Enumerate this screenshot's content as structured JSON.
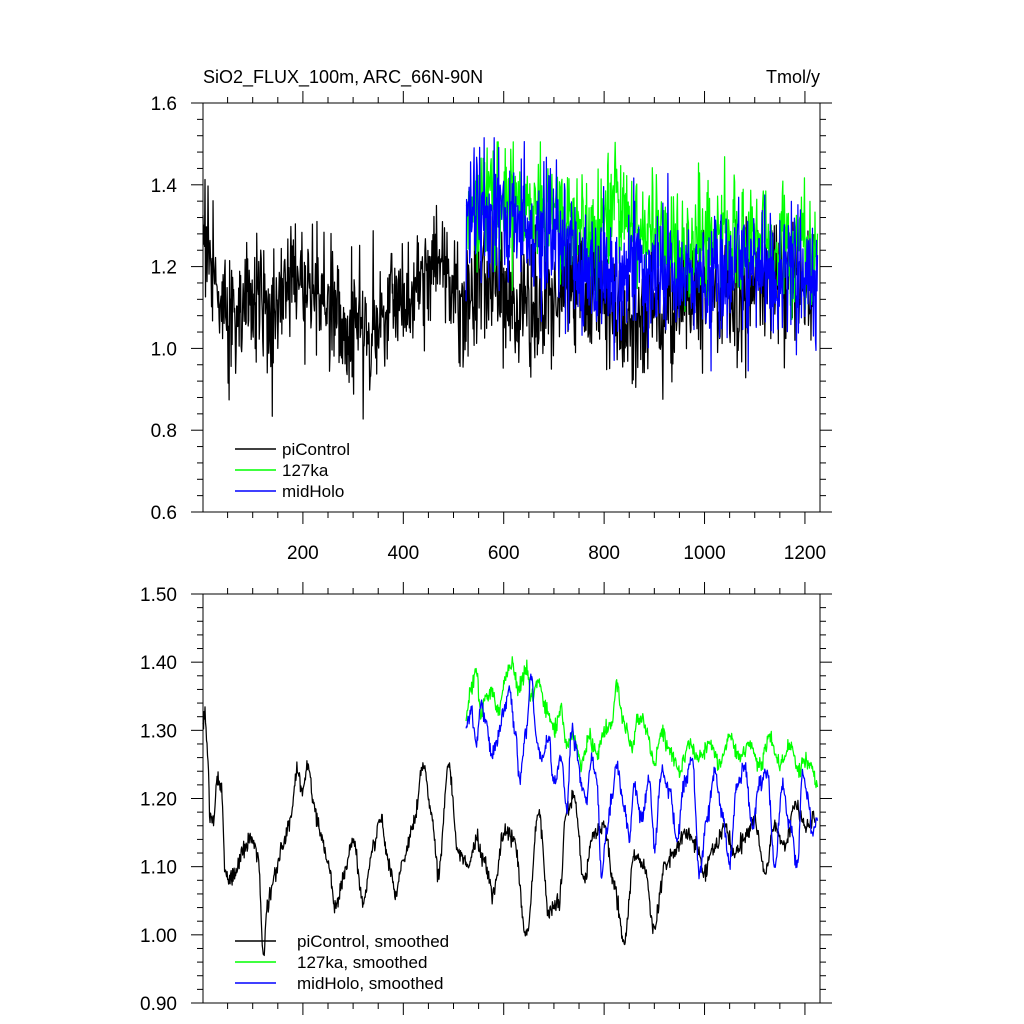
{
  "figure": {
    "title_left": "SiO2_FLUX_100m, ARC_66N-90N",
    "title_right": "Tmol/y"
  },
  "colors": {
    "piControl": "#000000",
    "127ka": "#00ff00",
    "midHolo": "#0000ff"
  },
  "chart_data": [
    {
      "type": "line",
      "title": "SiO2_FLUX_100m, ARC_66N-90N",
      "units": "Tmol/y",
      "xlabel": "",
      "ylabel": "",
      "xlim": [
        1,
        1230
      ],
      "ylim": [
        0.6,
        1.6
      ],
      "xticks": [
        200,
        400,
        600,
        800,
        1000,
        1200
      ],
      "xtick_labels": [
        "200",
        "400",
        "600",
        "800",
        "1000",
        "1200"
      ],
      "yticks": [
        0.6,
        0.8,
        1.0,
        1.2,
        1.4,
        1.6
      ],
      "ytick_labels": [
        "0.6",
        "0.8",
        "1.0",
        "1.2",
        "1.4",
        "1.6"
      ],
      "legend": [
        "piControl",
        "127ka",
        "midHolo"
      ],
      "legend_position": "bottom-left",
      "series": [
        {
          "name": "piControl",
          "color": "#000000",
          "x_range": [
            1,
            1220
          ],
          "smooth_mean_anchors": [
            [
              1,
              1.3
            ],
            [
              25,
              1.18
            ],
            [
              50,
              1.08
            ],
            [
              100,
              1.12
            ],
            [
              140,
              1.08
            ],
            [
              180,
              1.19
            ],
            [
              240,
              1.13
            ],
            [
              290,
              1.03
            ],
            [
              340,
              1.06
            ],
            [
              400,
              1.12
            ],
            [
              470,
              1.22
            ],
            [
              520,
              1.1
            ],
            [
              560,
              1.15
            ],
            [
              620,
              1.12
            ],
            [
              680,
              1.08
            ],
            [
              740,
              1.18
            ],
            [
              800,
              1.12
            ],
            [
              860,
              1.06
            ],
            [
              920,
              1.1
            ],
            [
              1000,
              1.14
            ],
            [
              1080,
              1.12
            ],
            [
              1160,
              1.15
            ],
            [
              1220,
              1.16
            ]
          ],
          "noise_sd": 0.075,
          "min": 0.785,
          "max": 1.465
        },
        {
          "name": "127ka",
          "color": "#00ff00",
          "x_range": [
            525,
            1225
          ],
          "smooth_mean_anchors": [
            [
              525,
              1.32
            ],
            [
              560,
              1.37
            ],
            [
              620,
              1.36
            ],
            [
              660,
              1.34
            ],
            [
              720,
              1.3
            ],
            [
              780,
              1.28
            ],
            [
              830,
              1.35
            ],
            [
              880,
              1.29
            ],
            [
              950,
              1.26
            ],
            [
              1050,
              1.27
            ],
            [
              1120,
              1.26
            ],
            [
              1200,
              1.25
            ],
            [
              1225,
              1.22
            ]
          ],
          "noise_sd": 0.07,
          "min": 1.02,
          "max": 1.505
        },
        {
          "name": "midHolo",
          "color": "#0000ff",
          "x_range": [
            525,
            1225
          ],
          "smooth_mean_anchors": [
            [
              525,
              1.3
            ],
            [
              560,
              1.33
            ],
            [
              620,
              1.32
            ],
            [
              660,
              1.28
            ],
            [
              700,
              1.26
            ],
            [
              750,
              1.22
            ],
            [
              800,
              1.15
            ],
            [
              860,
              1.2
            ],
            [
              920,
              1.18
            ],
            [
              1000,
              1.15
            ],
            [
              1080,
              1.2
            ],
            [
              1150,
              1.18
            ],
            [
              1225,
              1.17
            ]
          ],
          "noise_sd": 0.08,
          "min": 0.945,
          "max": 1.515
        }
      ]
    },
    {
      "type": "line",
      "title": "",
      "xlabel": "",
      "ylabel": "",
      "xlim": [
        1,
        1230
      ],
      "ylim": [
        0.9,
        1.5
      ],
      "xticks": [
        200,
        400,
        600,
        800,
        1000,
        1200
      ],
      "yticks": [
        0.9,
        1.0,
        1.1,
        1.2,
        1.3,
        1.4,
        1.5
      ],
      "ytick_labels": [
        "0.90",
        "1.00",
        "1.10",
        "1.20",
        "1.30",
        "1.40",
        "1.50"
      ],
      "legend": [
        "piControl, smoothed",
        "127ka, smoothed",
        "midHolo, smoothed"
      ],
      "legend_position": "bottom-left",
      "series": [
        {
          "name": "piControl, smoothed",
          "color": "#000000",
          "x_range": [
            1,
            1220
          ],
          "anchors": [
            [
              1,
              1.31
            ],
            [
              5,
              1.33
            ],
            [
              10,
              1.26
            ],
            [
              15,
              1.18
            ],
            [
              22,
              1.17
            ],
            [
              30,
              1.23
            ],
            [
              38,
              1.22
            ],
            [
              45,
              1.09
            ],
            [
              55,
              1.08
            ],
            [
              65,
              1.09
            ],
            [
              80,
              1.12
            ],
            [
              95,
              1.14
            ],
            [
              110,
              1.12
            ],
            [
              122,
              0.97
            ],
            [
              130,
              1.05
            ],
            [
              145,
              1.09
            ],
            [
              160,
              1.13
            ],
            [
              175,
              1.17
            ],
            [
              188,
              1.24
            ],
            [
              200,
              1.21
            ],
            [
              210,
              1.25
            ],
            [
              220,
              1.2
            ],
            [
              235,
              1.15
            ],
            [
              250,
              1.11
            ],
            [
              265,
              1.04
            ],
            [
              280,
              1.08
            ],
            [
              300,
              1.14
            ],
            [
              320,
              1.05
            ],
            [
              340,
              1.13
            ],
            [
              355,
              1.17
            ],
            [
              370,
              1.11
            ],
            [
              385,
              1.06
            ],
            [
              400,
              1.11
            ],
            [
              420,
              1.16
            ],
            [
              440,
              1.25
            ],
            [
              455,
              1.18
            ],
            [
              470,
              1.09
            ],
            [
              490,
              1.25
            ],
            [
              510,
              1.12
            ],
            [
              530,
              1.1
            ],
            [
              545,
              1.14
            ],
            [
              560,
              1.11
            ],
            [
              580,
              1.06
            ],
            [
              600,
              1.15
            ],
            [
              620,
              1.14
            ],
            [
              645,
              1.0
            ],
            [
              670,
              1.18
            ],
            [
              690,
              1.03
            ],
            [
              710,
              1.05
            ],
            [
              725,
              1.18
            ],
            [
              740,
              1.2
            ],
            [
              760,
              1.08
            ],
            [
              780,
              1.15
            ],
            [
              800,
              1.16
            ],
            [
              820,
              1.07
            ],
            [
              840,
              0.99
            ],
            [
              860,
              1.12
            ],
            [
              880,
              1.1
            ],
            [
              900,
              1.01
            ],
            [
              920,
              1.1
            ],
            [
              940,
              1.12
            ],
            [
              960,
              1.15
            ],
            [
              980,
              1.14
            ],
            [
              1000,
              1.09
            ],
            [
              1020,
              1.13
            ],
            [
              1040,
              1.16
            ],
            [
              1060,
              1.12
            ],
            [
              1080,
              1.14
            ],
            [
              1100,
              1.17
            ],
            [
              1120,
              1.09
            ],
            [
              1140,
              1.16
            ],
            [
              1160,
              1.13
            ],
            [
              1180,
              1.19
            ],
            [
              1200,
              1.16
            ],
            [
              1220,
              1.17
            ]
          ]
        },
        {
          "name": "127ka, smoothed",
          "color": "#00ff00",
          "x_range": [
            525,
            1225
          ],
          "anchors": [
            [
              525,
              1.32
            ],
            [
              535,
              1.36
            ],
            [
              545,
              1.39
            ],
            [
              555,
              1.32
            ],
            [
              565,
              1.35
            ],
            [
              575,
              1.36
            ],
            [
              590,
              1.33
            ],
            [
              605,
              1.38
            ],
            [
              615,
              1.4
            ],
            [
              630,
              1.36
            ],
            [
              645,
              1.39
            ],
            [
              655,
              1.35
            ],
            [
              670,
              1.37
            ],
            [
              685,
              1.33
            ],
            [
              700,
              1.3
            ],
            [
              715,
              1.33
            ],
            [
              725,
              1.28
            ],
            [
              740,
              1.29
            ],
            [
              755,
              1.25
            ],
            [
              770,
              1.29
            ],
            [
              785,
              1.27
            ],
            [
              800,
              1.3
            ],
            [
              815,
              1.31
            ],
            [
              825,
              1.37
            ],
            [
              840,
              1.31
            ],
            [
              855,
              1.28
            ],
            [
              870,
              1.32
            ],
            [
              885,
              1.3
            ],
            [
              900,
              1.25
            ],
            [
              915,
              1.3
            ],
            [
              930,
              1.27
            ],
            [
              950,
              1.24
            ],
            [
              970,
              1.28
            ],
            [
              990,
              1.26
            ],
            [
              1010,
              1.28
            ],
            [
              1030,
              1.25
            ],
            [
              1050,
              1.29
            ],
            [
              1070,
              1.26
            ],
            [
              1090,
              1.28
            ],
            [
              1110,
              1.25
            ],
            [
              1130,
              1.29
            ],
            [
              1150,
              1.25
            ],
            [
              1170,
              1.28
            ],
            [
              1190,
              1.24
            ],
            [
              1200,
              1.26
            ],
            [
              1212,
              1.25
            ],
            [
              1225,
              1.22
            ]
          ]
        },
        {
          "name": "midHolo, smoothed",
          "color": "#0000ff",
          "x_range": [
            525,
            1225
          ],
          "anchors": [
            [
              525,
              1.3
            ],
            [
              535,
              1.33
            ],
            [
              545,
              1.28
            ],
            [
              555,
              1.34
            ],
            [
              565,
              1.31
            ],
            [
              575,
              1.26
            ],
            [
              585,
              1.28
            ],
            [
              600,
              1.33
            ],
            [
              612,
              1.36
            ],
            [
              622,
              1.3
            ],
            [
              632,
              1.23
            ],
            [
              645,
              1.3
            ],
            [
              655,
              1.38
            ],
            [
              665,
              1.29
            ],
            [
              675,
              1.26
            ],
            [
              690,
              1.29
            ],
            [
              700,
              1.22
            ],
            [
              715,
              1.26
            ],
            [
              725,
              1.18
            ],
            [
              735,
              1.3
            ],
            [
              745,
              1.27
            ],
            [
              755,
              1.22
            ],
            [
              765,
              1.2
            ],
            [
              775,
              1.26
            ],
            [
              785,
              1.23
            ],
            [
              795,
              1.09
            ],
            [
              805,
              1.15
            ],
            [
              815,
              1.2
            ],
            [
              825,
              1.25
            ],
            [
              840,
              1.19
            ],
            [
              850,
              1.14
            ],
            [
              860,
              1.22
            ],
            [
              875,
              1.17
            ],
            [
              890,
              1.23
            ],
            [
              900,
              1.13
            ],
            [
              915,
              1.24
            ],
            [
              930,
              1.21
            ],
            [
              945,
              1.14
            ],
            [
              960,
              1.22
            ],
            [
              975,
              1.26
            ],
            [
              990,
              1.09
            ],
            [
              1005,
              1.17
            ],
            [
              1020,
              1.24
            ],
            [
              1035,
              1.18
            ],
            [
              1050,
              1.11
            ],
            [
              1065,
              1.22
            ],
            [
              1080,
              1.25
            ],
            [
              1095,
              1.16
            ],
            [
              1110,
              1.22
            ],
            [
              1125,
              1.24
            ],
            [
              1140,
              1.1
            ],
            [
              1155,
              1.22
            ],
            [
              1170,
              1.16
            ],
            [
              1185,
              1.1
            ],
            [
              1195,
              1.24
            ],
            [
              1205,
              1.2
            ],
            [
              1215,
              1.15
            ],
            [
              1225,
              1.17
            ]
          ]
        }
      ]
    }
  ]
}
